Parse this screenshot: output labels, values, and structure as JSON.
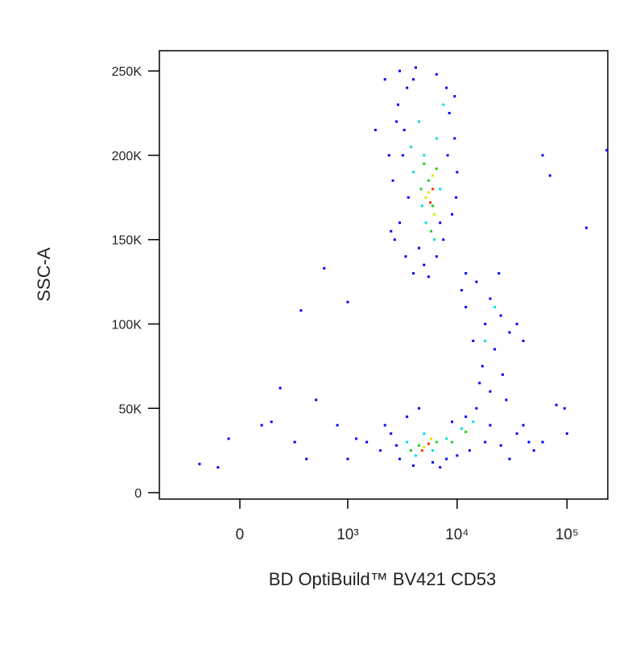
{
  "chart_data": {
    "type": "scatter",
    "xlabel": "BD OptiBuild™ BV421 CD53",
    "ylabel": "SSC-A",
    "xscale": "biexponential",
    "xlim": [
      -550,
      235000
    ],
    "ylim": [
      -3800,
      262000
    ],
    "xticks": [
      0,
      {
        "value": 1000,
        "label": "10³"
      },
      {
        "value": 10000,
        "label": "10⁴"
      },
      {
        "value": 100000,
        "label": "10⁵"
      }
    ],
    "yticks": [
      0,
      {
        "value": 50000,
        "label": "50K"
      },
      {
        "value": 100000,
        "label": "100K"
      },
      {
        "value": 150000,
        "label": "150K"
      },
      {
        "value": 200000,
        "label": "200K"
      },
      {
        "value": 250000,
        "label": "250K"
      }
    ],
    "series": [
      {
        "color": "#0000ff",
        "x": [
          3000,
          3500,
          4200,
          6500,
          8000,
          9500,
          2800,
          3200,
          2600,
          3000,
          3400,
          4000,
          5000,
          6500,
          7500,
          9000,
          10000,
          9500,
          8500,
          2900,
          3600,
          2700,
          4500,
          7000,
          8200,
          3300,
          2400,
          9800,
          5500,
          4000,
          12000,
          15000,
          20000,
          25000,
          18000,
          30000,
          22000,
          14000,
          17000,
          26000,
          12000,
          35000,
          20000,
          28000,
          16000,
          11000,
          40000,
          24000,
          2000,
          2500,
          3000,
          3500,
          4500,
          6000,
          8000,
          10000,
          13000,
          18000,
          25000,
          35000,
          45000,
          50000,
          2200,
          12000,
          15000,
          9000,
          7000,
          4000,
          30000,
          40000,
          60000,
          1500,
          2800,
          -200,
          -100,
          -50,
          100,
          150,
          300,
          500,
          200,
          350,
          600,
          1000,
          800,
          1200,
          1000,
          1800,
          2200,
          2500,
          20000,
          60000,
          70000,
          100000,
          150000,
          230000,
          80000,
          95000,
          400
        ],
        "values": [
          250000,
          240000,
          252000,
          248000,
          240000,
          235000,
          220000,
          200000,
          185000,
          160000,
          140000,
          130000,
          135000,
          140000,
          150000,
          165000,
          190000,
          210000,
          225000,
          230000,
          175000,
          150000,
          145000,
          160000,
          200000,
          215000,
          200000,
          175000,
          128000,
          245000,
          130000,
          125000,
          115000,
          105000,
          100000,
          95000,
          85000,
          90000,
          75000,
          70000,
          110000,
          100000,
          60000,
          55000,
          65000,
          120000,
          90000,
          130000,
          25000,
          35000,
          20000,
          45000,
          50000,
          18000,
          20000,
          22000,
          25000,
          30000,
          28000,
          35000,
          30000,
          25000,
          40000,
          45000,
          50000,
          42000,
          15000,
          16000,
          20000,
          40000,
          30000,
          30000,
          28000,
          17000,
          15000,
          32000,
          40000,
          42000,
          30000,
          55000,
          62000,
          108000,
          133000,
          113000,
          40000,
          32000,
          20000,
          215000,
          245000,
          155000,
          40000,
          200000,
          188000,
          35000,
          157000,
          203000,
          52000,
          50000,
          20000
        ]
      },
      {
        "color": "#00dddd",
        "x": [
          4500,
          5000,
          6500,
          4000,
          7000,
          5200,
          6200,
          4800,
          7500,
          3800,
          3500,
          5000,
          8000,
          11000,
          14000,
          6000,
          4200,
          18000,
          22000
        ],
        "values": [
          220000,
          200000,
          210000,
          190000,
          180000,
          160000,
          150000,
          170000,
          230000,
          205000,
          30000,
          35000,
          32000,
          38000,
          42000,
          25000,
          22000,
          90000,
          110000
        ]
      },
      {
        "color": "#22cc22",
        "x": [
          5000,
          5500,
          6000,
          4700,
          6500,
          5800,
          4500,
          6500,
          9000,
          12000,
          3800
        ],
        "values": [
          195000,
          185000,
          170000,
          180000,
          192000,
          155000,
          28000,
          30000,
          30000,
          36000,
          25000
        ]
      },
      {
        "color": "#e5e500",
        "x": [
          5500,
          6000,
          5200,
          6200,
          5000,
          5800
        ],
        "values": [
          178000,
          188000,
          175000,
          165000,
          27000,
          32000
        ]
      },
      {
        "color": "#ff3000",
        "x": [
          5700,
          6000,
          4800,
          5500
        ],
        "values": [
          172000,
          180000,
          25000,
          29000
        ]
      }
    ]
  }
}
